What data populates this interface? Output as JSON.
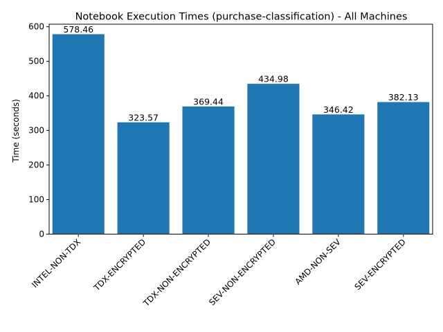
{
  "chart_data": {
    "type": "bar",
    "title": "Notebook Execution Times (purchase-classification) - All Machines",
    "xlabel": "",
    "ylabel": "Time (seconds)",
    "categories": [
      "INTEL-NON-TDX",
      "TDX-ENCRYPTED",
      "TDX-NON-ENCRYPTED",
      "SEV-NON-ENCRYPTED",
      "AMD-NON-SEV",
      "SEV-ENCRYPTED"
    ],
    "values": [
      578.46,
      323.57,
      369.44,
      434.98,
      346.42,
      382.13
    ],
    "data_labels": [
      "578.46",
      "323.57",
      "369.44",
      "434.98",
      "346.42",
      "382.13"
    ],
    "ylim": [
      0,
      607.383
    ],
    "yticks": [
      0,
      100,
      200,
      300,
      400,
      500,
      600
    ],
    "ytick_labels": [
      "0",
      "100",
      "200",
      "300",
      "400",
      "500",
      "600"
    ],
    "bar_color": "#1f77b4",
    "grid": false,
    "legend": "none"
  }
}
